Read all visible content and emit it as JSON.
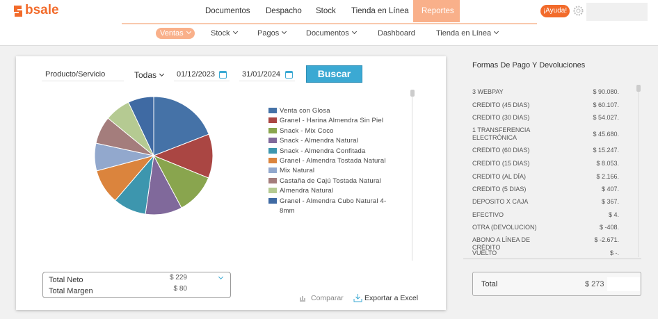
{
  "nav": {
    "logo": "bsale",
    "items": [
      "Documentos",
      "Despacho",
      "Stock",
      "Tienda en Línea",
      "Reportes"
    ],
    "help": "¡Ayuda!"
  },
  "subnav": {
    "items": [
      "Ventas",
      "Stock",
      "Pagos",
      "Documentos",
      "Dashboard",
      "Tienda en Línea"
    ]
  },
  "filters": {
    "product": "Producto/Servicio",
    "branch": "Todas",
    "date_from": "01/12/2023",
    "date_to": "31/01/2024",
    "search": "Buscar"
  },
  "chart_data": {
    "type": "pie",
    "categories": [
      "Venta con Glosa",
      "Granel - Harina Almendra Sin Piel",
      "Snack - Mix Coco",
      "Snack - Almendra Natural",
      "Snack - Almendra Confitada",
      "Granel - Almendra Tostada Natural",
      "Mix Natural",
      "Castaña de Cajú Tostada Natural",
      "Almendra Natural",
      "Granel - Almendra Cubo Natural 4-8mm"
    ],
    "values": [
      19,
      12,
      11,
      10,
      9,
      9.5,
      7.5,
      7.5,
      7,
      7
    ],
    "colors": [
      "#4572a7",
      "#aa4643",
      "#89a54e",
      "#80699b",
      "#3d96ae",
      "#db843d",
      "#92a8cd",
      "#a47d7c",
      "#b5ca92",
      "#3f6aa3"
    ]
  },
  "totals": {
    "rows": [
      {
        "label": "Total Neto",
        "value": "$ 229"
      },
      {
        "label": "Total Margen",
        "value": "$ 80"
      }
    ]
  },
  "actions": {
    "compare": "Comparar",
    "export": "Exportar a Excel"
  },
  "payments": {
    "title": "Formas De Pago Y Devoluciones",
    "rows": [
      {
        "label": "3 WEBPAY",
        "amount": "$ 90.080."
      },
      {
        "label": "CREDITO (45 DIAS)",
        "amount": "$ 60.107."
      },
      {
        "label": "CREDITO (30 DIAS)",
        "amount": "$ 54.027."
      },
      {
        "label": "1 TRANSFERENCIA ELECTRÓNICA",
        "amount": "$ 45.680."
      },
      {
        "label": "CREDITO (60 DIAS)",
        "amount": "$ 15.247."
      },
      {
        "label": "CREDITO (15 DIAS)",
        "amount": "$ 8.053."
      },
      {
        "label": "CREDITO (AL DÍA)",
        "amount": "$ 2.166."
      },
      {
        "label": "CREDITO (5 DIAS)",
        "amount": "$ 407."
      },
      {
        "label": "DEPOSITO X CAJA",
        "amount": "$ 367."
      },
      {
        "label": "EFECTIVO",
        "amount": "$ 4."
      },
      {
        "label": "OTRA (DEVOLUCION)",
        "amount": "$ -408."
      },
      {
        "label": "ABONO A LÍNEA DE CRÉDITO",
        "amount": "$ -2.671."
      },
      {
        "label": "VUELTO",
        "amount": "$ -."
      }
    ],
    "total": {
      "label": "Total",
      "amount": "$ 273"
    }
  }
}
